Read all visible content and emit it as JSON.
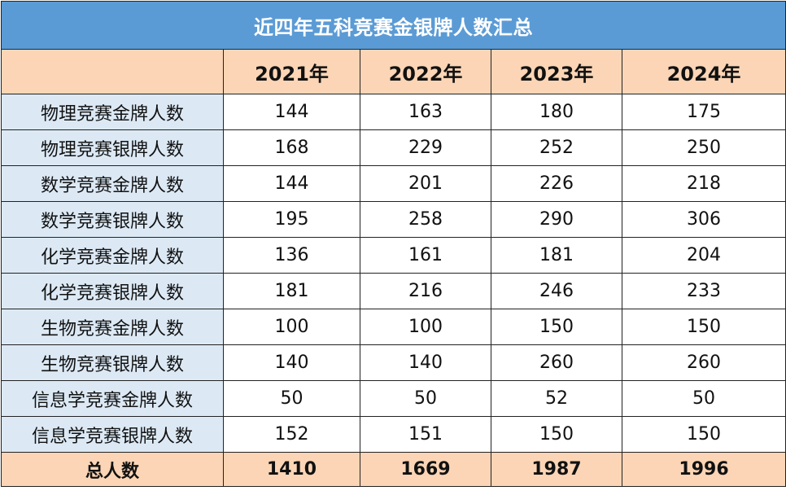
{
  "title": "近四年五科竞赛金银牌人数汇总",
  "header": {
    "corner": "",
    "years": [
      "2021年",
      "2022年",
      "2023年",
      "2024年"
    ]
  },
  "rows": [
    {
      "label": "物理竞赛金牌人数",
      "values": [
        "144",
        "163",
        "180",
        "175"
      ]
    },
    {
      "label": "物理竞赛银牌人数",
      "values": [
        "168",
        "229",
        "252",
        "250"
      ]
    },
    {
      "label": "数学竞赛金牌人数",
      "values": [
        "144",
        "201",
        "226",
        "218"
      ]
    },
    {
      "label": "数学竞赛银牌人数",
      "values": [
        "195",
        "258",
        "290",
        "306"
      ]
    },
    {
      "label": "化学竞赛金牌人数",
      "values": [
        "136",
        "161",
        "181",
        "204"
      ]
    },
    {
      "label": "化学竞赛银牌人数",
      "values": [
        "181",
        "216",
        "246",
        "233"
      ]
    },
    {
      "label": "生物竞赛金牌人数",
      "values": [
        "100",
        "100",
        "150",
        "150"
      ]
    },
    {
      "label": "生物竞赛银牌人数",
      "values": [
        "140",
        "140",
        "260",
        "260"
      ]
    },
    {
      "label": "信息学竞赛金牌人数",
      "values": [
        "50",
        "50",
        "52",
        "50"
      ]
    },
    {
      "label": "信息学竞赛银牌人数",
      "values": [
        "152",
        "151",
        "150",
        "150"
      ]
    }
  ],
  "total": {
    "label": "总人数",
    "values": [
      "1410",
      "1669",
      "1987",
      "1996"
    ]
  },
  "colors": {
    "title_bg": "#5b9bd5",
    "header_bg": "#fbd5b5",
    "label_bg": "#dce9f5"
  }
}
